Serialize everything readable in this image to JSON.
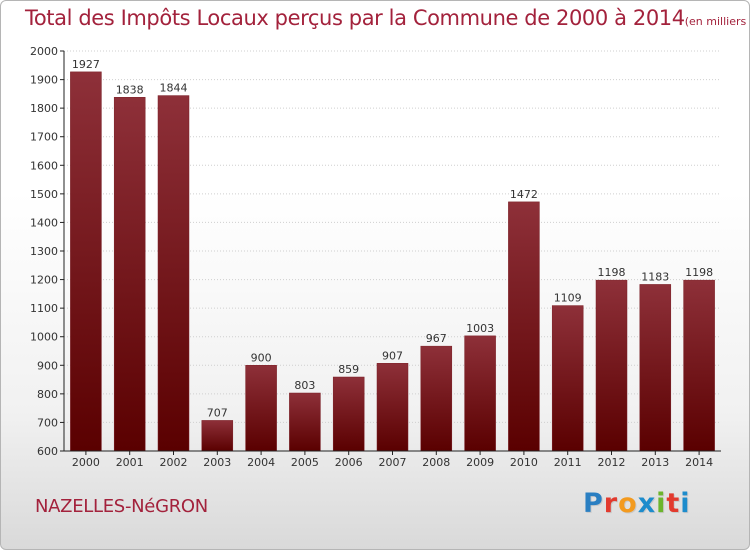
{
  "title": "Total des Impôts Locaux perçus par la Commune de 2000 à 2014",
  "title_unit": "(en milliers d'€)",
  "commune": "NAZELLES-NéGRON",
  "logo": {
    "text": "Proxiti",
    "letter_colors": [
      "#2a7fc2",
      "#e23a2e",
      "#f39a1e",
      "#1d8ccc",
      "#6cb52d",
      "#e23a2e",
      "#1d8ccc"
    ]
  },
  "colors": {
    "bar_top": "#8e3039",
    "bar_bottom": "#5a0000",
    "title": "#a3223c",
    "grid": "#cfcfcf",
    "axis": "#222222"
  },
  "chart_data": {
    "type": "bar",
    "categories": [
      "2000",
      "2001",
      "2002",
      "2003",
      "2004",
      "2005",
      "2006",
      "2007",
      "2008",
      "2009",
      "2010",
      "2011",
      "2012",
      "2013",
      "2014"
    ],
    "values": [
      1927,
      1838,
      1844,
      707,
      900,
      803,
      859,
      907,
      967,
      1003,
      1472,
      1109,
      1198,
      1183,
      1198
    ],
    "data_labels": [
      "1927",
      "1838",
      "1844",
      "707",
      "900",
      "803",
      "859",
      "907",
      "967",
      "1003",
      "1472",
      "1109",
      "1198",
      "1183",
      "1198"
    ],
    "y_ticks": [
      "600",
      "700",
      "800",
      "900",
      "1000",
      "1100",
      "1200",
      "1300",
      "1400",
      "1500",
      "1600",
      "1700",
      "1800",
      "1900",
      "2000"
    ],
    "ylim": [
      600,
      2000
    ],
    "grid": true
  }
}
